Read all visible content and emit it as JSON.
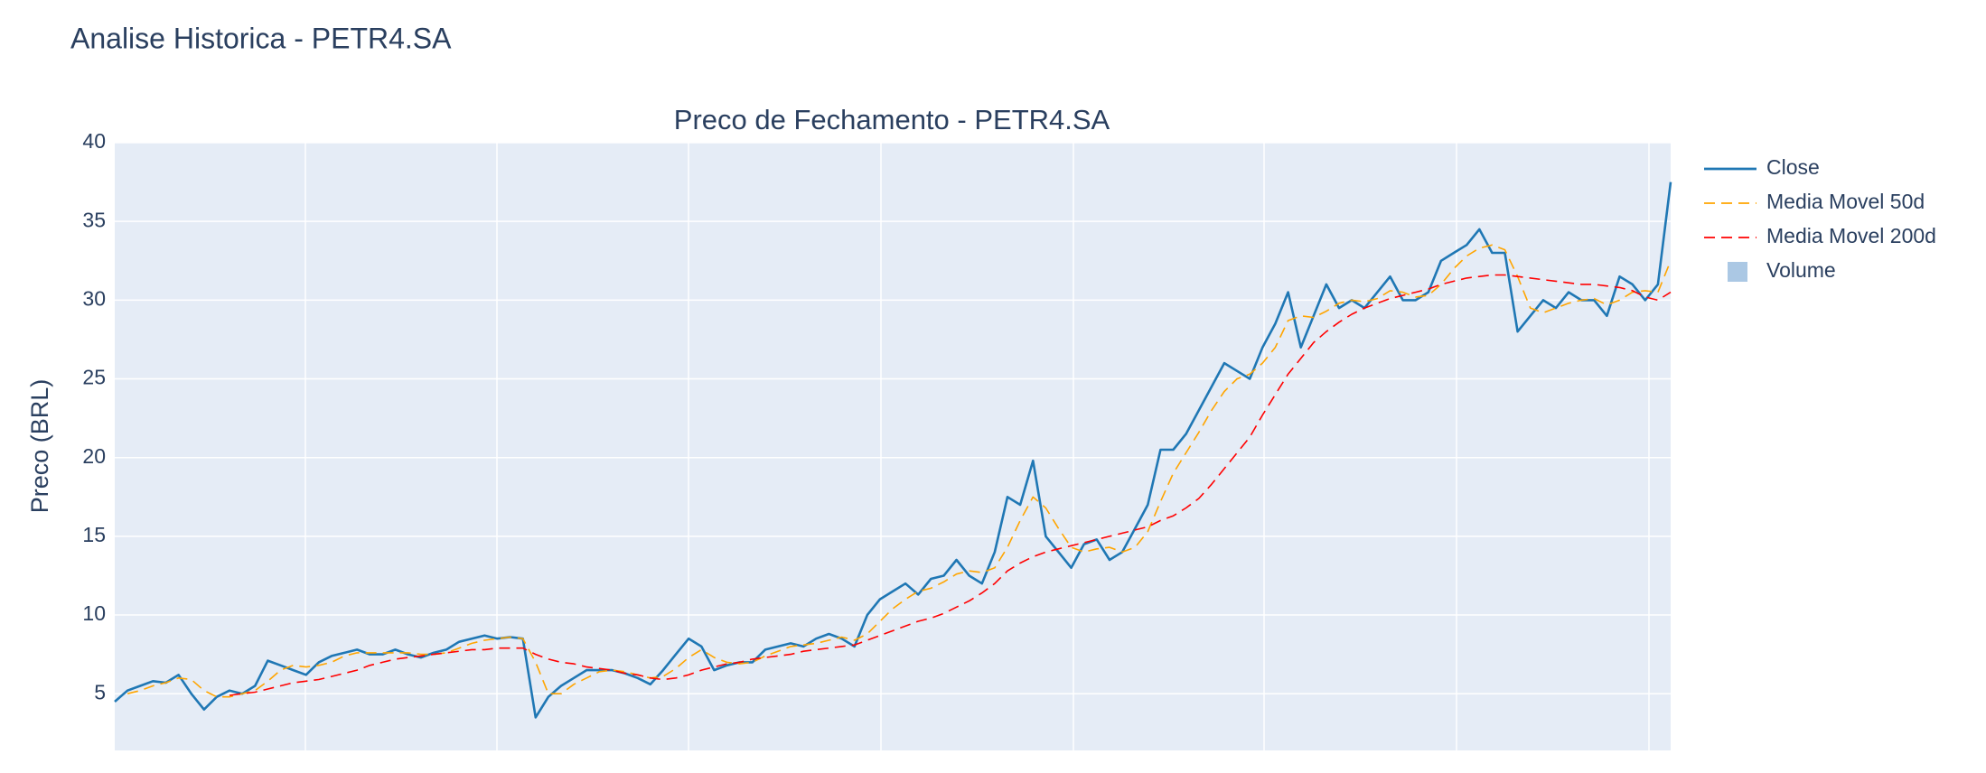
{
  "title": "Analise Historica - PETR4.SA",
  "chart_data": {
    "type": "line",
    "title": "Preco de Fechamento - PETR4.SA",
    "y_label": "Preco (BRL)",
    "categories": [
      null,
      null,
      null,
      null,
      null,
      null,
      null,
      null,
      null,
      null,
      null,
      null,
      null,
      null,
      null,
      null,
      null,
      null,
      null,
      null,
      null,
      null,
      null,
      null,
      null,
      null,
      null,
      null,
      null,
      null,
      null,
      null,
      null,
      null,
      null,
      null,
      null,
      null,
      null,
      null,
      null,
      null,
      null,
      null,
      null,
      null,
      null,
      null,
      null,
      null,
      null,
      null,
      null,
      null,
      null,
      null,
      null,
      null,
      null,
      null,
      null,
      null,
      null,
      null,
      null,
      null,
      null,
      null,
      null,
      null,
      null,
      null,
      null,
      null,
      null,
      null,
      null,
      null,
      null,
      null,
      null,
      null,
      null,
      null,
      null,
      null,
      null,
      null,
      null,
      null,
      null,
      null,
      null,
      null,
      null,
      null,
      null,
      null,
      null,
      null,
      null,
      null,
      null,
      null,
      null,
      null,
      null,
      null,
      null,
      null,
      null,
      null,
      null,
      null,
      null,
      null,
      null,
      null,
      null,
      null,
      null,
      null,
      null
    ],
    "ylim": [
      1.4,
      40
    ],
    "yticks": [
      5,
      10,
      15,
      20,
      25,
      30,
      35,
      40
    ],
    "grid": true,
    "legend": "right",
    "background": "#e5ecf6",
    "series": [
      {
        "name": "Close",
        "color": "#1f77b4",
        "dash": "solid",
        "values": [
          4.5,
          5.2,
          5.5,
          5.8,
          5.7,
          6.2,
          5.0,
          4.0,
          4.8,
          5.2,
          5.0,
          5.5,
          7.1,
          6.8,
          6.5,
          6.2,
          7.0,
          7.4,
          7.6,
          7.8,
          7.5,
          7.5,
          7.8,
          7.5,
          7.3,
          7.6,
          7.8,
          8.3,
          8.5,
          8.7,
          8.5,
          8.6,
          8.5,
          3.5,
          4.8,
          5.5,
          6.0,
          6.5,
          6.5,
          6.5,
          6.3,
          6.0,
          5.6,
          6.5,
          7.5,
          8.5,
          8.0,
          6.5,
          6.8,
          7.0,
          7.0,
          7.8,
          8.0,
          8.2,
          8.0,
          8.5,
          8.8,
          8.5,
          8.0,
          10.0,
          11.0,
          11.5,
          12.0,
          11.3,
          12.3,
          12.5,
          13.5,
          12.5,
          12.0,
          14.0,
          17.5,
          17.0,
          19.8,
          15.0,
          14.0,
          13.0,
          14.5,
          14.8,
          13.5,
          14.0,
          15.5,
          17.0,
          20.5,
          20.5,
          21.5,
          23.0,
          24.5,
          26.0,
          25.5,
          25.0,
          27.0,
          28.5,
          30.5,
          27.0,
          29.0,
          31.0,
          29.5,
          30.0,
          29.5,
          30.5,
          31.5,
          30.0,
          30.0,
          30.5,
          32.5,
          33.0,
          33.5,
          34.5,
          33.0,
          33.0,
          28.0,
          29.0,
          30.0,
          29.5,
          30.5,
          30.0,
          30.0,
          29.0,
          31.5,
          31.0,
          30.0,
          31.0,
          37.5
        ]
      },
      {
        "name": "Media Movel 50d",
        "color": "#ffa500",
        "dash": "dash",
        "values": [
          null,
          5.0,
          5.2,
          5.5,
          5.7,
          6.0,
          5.9,
          5.2,
          4.8,
          4.8,
          5.0,
          5.2,
          5.8,
          6.5,
          6.8,
          6.7,
          6.8,
          7.0,
          7.4,
          7.6,
          7.6,
          7.6,
          7.6,
          7.6,
          7.5,
          7.5,
          7.6,
          7.9,
          8.2,
          8.4,
          8.5,
          8.6,
          8.5,
          7.0,
          5.0,
          5.0,
          5.6,
          6.0,
          6.4,
          6.5,
          6.4,
          6.2,
          6.0,
          6.1,
          6.6,
          7.3,
          7.8,
          7.3,
          7.0,
          6.9,
          7.0,
          7.4,
          7.7,
          8.0,
          8.1,
          8.2,
          8.4,
          8.6,
          8.4,
          8.8,
          9.6,
          10.4,
          11.0,
          11.5,
          11.7,
          12.1,
          12.6,
          12.8,
          12.7,
          13.0,
          14.3,
          16.0,
          17.5,
          16.8,
          15.5,
          14.3,
          14.0,
          14.2,
          14.3,
          14.0,
          14.3,
          15.3,
          17.2,
          19.0,
          20.3,
          21.6,
          23.0,
          24.2,
          25.0,
          25.3,
          26.0,
          27.0,
          28.7,
          29.0,
          28.9,
          29.3,
          29.8,
          30.0,
          29.9,
          30.1,
          30.6,
          30.5,
          30.2,
          30.3,
          31.0,
          32.0,
          32.8,
          33.3,
          33.5,
          33.2,
          31.5,
          29.5,
          29.2,
          29.5,
          29.8,
          30.0,
          30.1,
          29.7,
          30.0,
          30.5,
          30.6,
          30.5,
          32.5
        ]
      },
      {
        "name": "Media Movel 200d",
        "color": "#ff0000",
        "dash": "dash",
        "values": [
          null,
          null,
          null,
          null,
          null,
          null,
          null,
          null,
          null,
          4.9,
          5.0,
          5.1,
          5.3,
          5.5,
          5.7,
          5.8,
          5.9,
          6.1,
          6.3,
          6.5,
          6.8,
          7.0,
          7.2,
          7.3,
          7.4,
          7.5,
          7.6,
          7.7,
          7.8,
          7.8,
          7.9,
          7.9,
          7.9,
          7.5,
          7.2,
          7.0,
          6.9,
          6.7,
          6.6,
          6.5,
          6.3,
          6.2,
          6.0,
          5.9,
          6.0,
          6.2,
          6.5,
          6.7,
          6.9,
          7.0,
          7.2,
          7.3,
          7.4,
          7.5,
          7.7,
          7.8,
          7.9,
          8.0,
          8.1,
          8.4,
          8.7,
          9.0,
          9.3,
          9.6,
          9.8,
          10.1,
          10.5,
          10.9,
          11.4,
          12.0,
          12.8,
          13.3,
          13.7,
          14.0,
          14.2,
          14.4,
          14.6,
          14.8,
          15.0,
          15.2,
          15.4,
          15.6,
          16.0,
          16.3,
          16.8,
          17.4,
          18.3,
          19.3,
          20.3,
          21.3,
          22.7,
          24.0,
          25.3,
          26.3,
          27.3,
          28.0,
          28.6,
          29.1,
          29.5,
          29.8,
          30.1,
          30.3,
          30.5,
          30.7,
          31.0,
          31.2,
          31.4,
          31.5,
          31.6,
          31.6,
          31.5,
          31.4,
          31.3,
          31.2,
          31.1,
          31.0,
          31.0,
          30.9,
          30.8,
          30.6,
          30.2,
          30.0,
          30.5
        ]
      },
      {
        "name": "Volume",
        "color": "#abc8e4",
        "type": "bar",
        "values": [
          null,
          null,
          null,
          null,
          null,
          null,
          null,
          null,
          null,
          null,
          null,
          null,
          null,
          null,
          null,
          null,
          null,
          null,
          null,
          null,
          null,
          null,
          null,
          null,
          null,
          null,
          null,
          null,
          null,
          null,
          null,
          null,
          null,
          null,
          null,
          null,
          null,
          null,
          null,
          null,
          null,
          null,
          null,
          null,
          null,
          null,
          null,
          null,
          null,
          null,
          null,
          null,
          null,
          null,
          null,
          null,
          null,
          null,
          null,
          null,
          null,
          null,
          null,
          null,
          null,
          null,
          null,
          null,
          null,
          null,
          null,
          null,
          null,
          null,
          null,
          null,
          null,
          null,
          null,
          null,
          null,
          null,
          null,
          null,
          null,
          null,
          null,
          null,
          null,
          null,
          null,
          null,
          null,
          null,
          null,
          null,
          null,
          null,
          null,
          null,
          null,
          null,
          null,
          null,
          null,
          null,
          null,
          null,
          null,
          null,
          null,
          null,
          null,
          null,
          null,
          null,
          null,
          null,
          null,
          null,
          null,
          null,
          null
        ]
      }
    ]
  }
}
